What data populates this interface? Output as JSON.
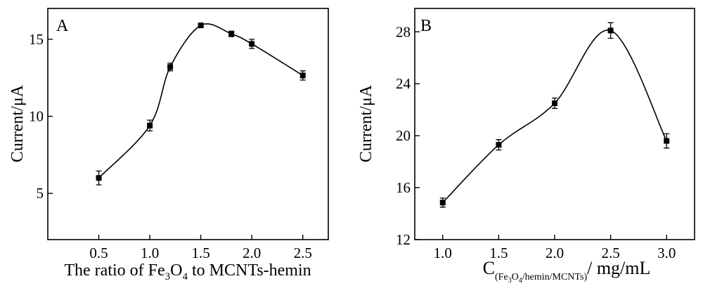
{
  "chart_data": [
    {
      "type": "line",
      "panel_label": "A",
      "x": [
        0.5,
        1.0,
        1.2,
        1.5,
        1.8,
        2.0,
        2.5
      ],
      "series": [
        {
          "values": [
            6.0,
            9.4,
            13.2,
            15.9,
            15.35,
            14.7,
            12.65
          ],
          "errors": [
            0.45,
            0.35,
            0.25,
            0.12,
            0.18,
            0.3,
            0.3
          ]
        }
      ],
      "xlim": [
        0.0,
        2.75
      ],
      "ylim": [
        2.0,
        17.0
      ],
      "xticks": [
        0.5,
        1.0,
        1.5,
        2.0,
        2.5
      ],
      "xtick_labels": [
        "0.5",
        "1.0",
        "1.5",
        "2.0",
        "2.5"
      ],
      "yticks": [
        5,
        10,
        15
      ],
      "ytick_labels": [
        "5",
        "10",
        "15"
      ],
      "xlabel": {
        "before": "The ratio of Fe",
        "sub1": "3",
        "mid": "O",
        "sub2": "4",
        "after": " to MCNTs-hemin"
      },
      "ylabel": "Current/μA",
      "grid": false,
      "legend": "none"
    },
    {
      "type": "line",
      "panel_label": "B",
      "x": [
        1.0,
        1.5,
        2.0,
        2.5,
        3.0
      ],
      "series": [
        {
          "values": [
            14.85,
            19.3,
            22.5,
            28.1,
            19.6
          ],
          "errors": [
            0.35,
            0.4,
            0.4,
            0.6,
            0.55
          ]
        }
      ],
      "xlim": [
        0.75,
        3.25
      ],
      "ylim": [
        12.0,
        29.8
      ],
      "xticks": [
        1.0,
        1.5,
        2.0,
        2.5,
        3.0
      ],
      "xtick_labels": [
        "1.0",
        "1.5",
        "2.0",
        "2.5",
        "3.0"
      ],
      "yticks": [
        12,
        16,
        20,
        24,
        28
      ],
      "ytick_labels": [
        "12",
        "16",
        "20",
        "24",
        "28"
      ],
      "xlabel": {
        "main": "C",
        "sub_before": "(Fe",
        "sub_3": "3",
        "sub_mid": "O",
        "sub_4": "4",
        "sub_after": "/hemin/MCNTs)",
        "after": "/ mg/mL"
      },
      "ylabel": "Current/μA",
      "grid": false,
      "legend": "none"
    }
  ]
}
